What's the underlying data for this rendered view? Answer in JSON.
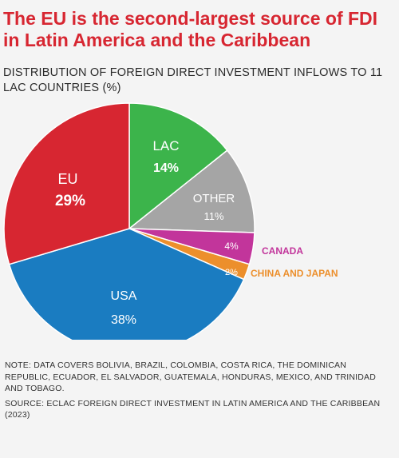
{
  "title": "The EU is the second-largest source of FDI in Latin America and the Caribbean",
  "subtitle": "DISTRIBUTION OF FOREIGN DIRECT INVESTMENT INFLOWS TO 11 LAC COUNTRIES (%)",
  "note": "NOTE: DATA COVERS BOLIVIA, BRAZIL, COLOMBIA, COSTA RICA, THE DOMINICAN REPUBLIC, ECUADOR, EL SALVADOR, GUATEMALA, HONDURAS, MEXICO, AND TRINIDAD AND TOBAGO.",
  "source": "SOURCE: ECLAC FOREIGN DIRECT INVESTMENT IN LATIN AMERICA AND THE CARIBBEAN (2023)",
  "chart_data": {
    "type": "pie",
    "slices": [
      {
        "label": "LAC",
        "value": 14,
        "value_label": "14%",
        "color": "#3cb44b"
      },
      {
        "label": "OTHER",
        "value": 11,
        "value_label": "11%",
        "color": "#a5a5a5"
      },
      {
        "label": "CANADA",
        "value": 4,
        "value_label": "4%",
        "color": "#c2359b"
      },
      {
        "label": "CHINA AND JAPAN",
        "value": 2,
        "value_label": "2%",
        "color": "#ec8f2c"
      },
      {
        "label": "USA",
        "value": 38,
        "value_label": "38%",
        "color": "#1a7cc1"
      },
      {
        "label": "EU",
        "value": 29,
        "value_label": "29%",
        "color": "#d72631"
      }
    ]
  }
}
